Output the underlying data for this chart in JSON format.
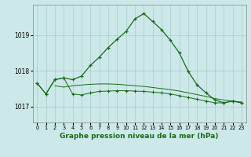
{
  "bg_color": "#cce8e8",
  "grid_color": "#aacccc",
  "line_color": "#1a6b1a",
  "title": "Graphe pression niveau de la mer (hPa)",
  "title_fontsize": 6.5,
  "ylim": [
    1016.55,
    1019.85
  ],
  "xlim": [
    -0.5,
    23.5
  ],
  "yticks": [
    1017,
    1018,
    1019
  ],
  "xticks": [
    0,
    1,
    2,
    3,
    4,
    5,
    6,
    7,
    8,
    9,
    10,
    11,
    12,
    13,
    14,
    15,
    16,
    17,
    18,
    19,
    20,
    21,
    22,
    23
  ],
  "series1": {
    "x": [
      0,
      1,
      2,
      3,
      4,
      5,
      6,
      7,
      8,
      9,
      10,
      11,
      12,
      13,
      14,
      15,
      16,
      17,
      18,
      19,
      20,
      21,
      22,
      23
    ],
    "y": [
      1017.65,
      1017.35,
      1017.75,
      1017.8,
      1017.75,
      1017.85,
      1018.15,
      1018.38,
      1018.65,
      1018.88,
      1019.1,
      1019.45,
      1019.6,
      1019.38,
      1019.15,
      1018.85,
      1018.5,
      1017.98,
      1017.6,
      1017.38,
      1017.18,
      1017.1,
      1017.15,
      1017.1
    ]
  },
  "series2": {
    "x": [
      0,
      1,
      2,
      3,
      4,
      5,
      6,
      7,
      8,
      9,
      10,
      11,
      12,
      13,
      14,
      15,
      16,
      17,
      18,
      19,
      20,
      21,
      22,
      23
    ],
    "y": [
      1017.65,
      1017.35,
      1017.75,
      1017.8,
      1017.35,
      1017.32,
      1017.38,
      1017.42,
      1017.43,
      1017.44,
      1017.44,
      1017.43,
      1017.42,
      1017.4,
      1017.38,
      1017.35,
      1017.3,
      1017.25,
      1017.2,
      1017.15,
      1017.1,
      1017.1,
      1017.15,
      1017.1
    ]
  },
  "series3": {
    "x": [
      2,
      3,
      4,
      5,
      6,
      7,
      8,
      9,
      10,
      11,
      12,
      13,
      14,
      15,
      16,
      17,
      18,
      19,
      20,
      21,
      22,
      23
    ],
    "y": [
      1017.58,
      1017.54,
      1017.58,
      1017.6,
      1017.62,
      1017.63,
      1017.63,
      1017.62,
      1017.6,
      1017.58,
      1017.56,
      1017.53,
      1017.5,
      1017.47,
      1017.43,
      1017.38,
      1017.33,
      1017.28,
      1017.22,
      1017.18,
      1017.15,
      1017.12
    ]
  }
}
